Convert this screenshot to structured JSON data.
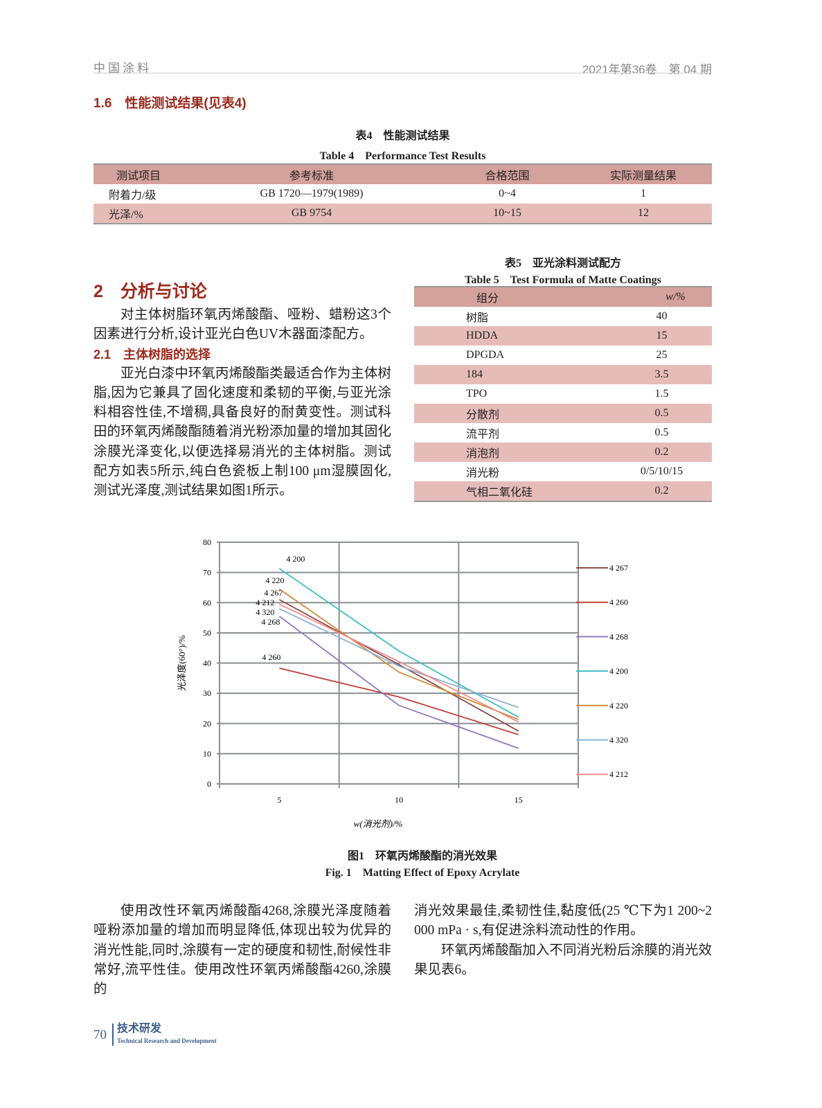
{
  "header": {
    "journal": "中国涂料",
    "issue": "2021年第36卷　第 04 期"
  },
  "section_1_6": "1.6　性能测试结果(见表4)",
  "table4": {
    "caption_cn": "表4　性能测试结果",
    "caption_en": "Table 4　Performance Test Results",
    "columns": [
      "测试项目",
      "参考标准",
      "合格范围",
      "实际测量结果"
    ],
    "rows": [
      [
        "附着力/级",
        "GB 1720—1979(1989)",
        "0~4",
        "1"
      ],
      [
        "光泽/%",
        "GB 9754",
        "10~15",
        "12"
      ]
    ]
  },
  "section_2": "2　分析与讨论",
  "para_2": "对主体树脂环氧丙烯酸酯、哑粉、蜡粉这3个因素进行分析,设计亚光白色UV木器面漆配方。",
  "section_2_1": "2.1　主体树脂的选择",
  "para_2_1": "亚光白漆中环氧丙烯酸酯类最适合作为主体树脂,因为它兼具了固化速度和柔韧的平衡,与亚光涂料相容性佳,不增稠,具备良好的耐黄变性。测试科田的环氧丙烯酸酯随着消光粉添加量的增加其固化涂膜光泽变化,以便选择易消光的主体树脂。测试配方如表5所示,纯白色瓷板上制100 μm湿膜固化,测试光泽度,测试结果如图1所示。",
  "table5": {
    "caption_cn": "表5　亚光涂料测试配方",
    "caption_en": "Table 5　Test Formula of Matte Coatings",
    "columns": [
      "组分",
      "w/%"
    ],
    "rows": [
      [
        "树脂",
        "40"
      ],
      [
        "HDDA",
        "15"
      ],
      [
        "DPGDA",
        "25"
      ],
      [
        "184",
        "3.5"
      ],
      [
        "TPO",
        "1.5"
      ],
      [
        "分散剂",
        "0.5"
      ],
      [
        "流平剂",
        "0.5"
      ],
      [
        "消泡剂",
        "0.2"
      ],
      [
        "消光粉",
        "0/5/10/15"
      ],
      [
        "气相二氧化硅",
        "0.2"
      ]
    ]
  },
  "chart_data": {
    "type": "line",
    "xlabel": "w(消光剂)/%",
    "ylabel": "光泽度(60°)/%",
    "x": [
      5,
      10,
      15
    ],
    "x_ticks": [
      "5",
      "10",
      "15"
    ],
    "y_ticks": [
      "0",
      "10",
      "20",
      "30",
      "40",
      "50",
      "60",
      "70",
      "80"
    ],
    "ylim": [
      0,
      80
    ],
    "xlim": [
      2.5,
      17.5
    ],
    "grid": true,
    "legend_placement": "right",
    "series": [
      {
        "name": "4 267",
        "values": [
          61,
          39.5,
          17.5
        ],
        "color": "#8b4a48"
      },
      {
        "name": "4 260",
        "values": [
          38.3,
          28.8,
          16.3
        ],
        "color": "#c0403a"
      },
      {
        "name": "4 268",
        "values": [
          55.5,
          26,
          11.8
        ],
        "color": "#9478bf"
      },
      {
        "name": "4 200",
        "values": [
          71.3,
          44,
          22.1
        ],
        "color": "#3fc0c2"
      },
      {
        "name": "4 220",
        "values": [
          64.5,
          37,
          21.3
        ],
        "color": "#d08a3c"
      },
      {
        "name": "4 320",
        "values": [
          58,
          39,
          25.3
        ],
        "color": "#8fb0cf"
      },
      {
        "name": "4 212",
        "values": [
          59.5,
          40.5,
          20.5
        ],
        "color": "#f08a8a"
      }
    ]
  },
  "figure": {
    "caption_cn": "图1　环氧丙烯酸酯的消光效果",
    "caption_en": "Fig. 1　Matting Effect of Epoxy Acrylate"
  },
  "para_bottom_left": "使用改性环氧丙烯酸酯4268,涂膜光泽度随着哑粉添加量的增加而明显降低,体现出较为优异的消光性能,同时,涂膜有一定的硬度和韧性,耐候性非常好,流平性佳。使用改性环氧丙烯酸酯4260,涂膜的",
  "para_bottom_right_1": "消光效果最佳,柔韧性佳,黏度低(25 ℃下为1 200~2 000 mPa · s,有促进涂料流动性的作用。",
  "para_bottom_right_2": "环氧丙烯酸酯加入不同消光粉后涂膜的消光效果见表6。",
  "footer": {
    "page": "70",
    "section_cn": "技术研发",
    "section_en": "Technical Research and Development"
  }
}
